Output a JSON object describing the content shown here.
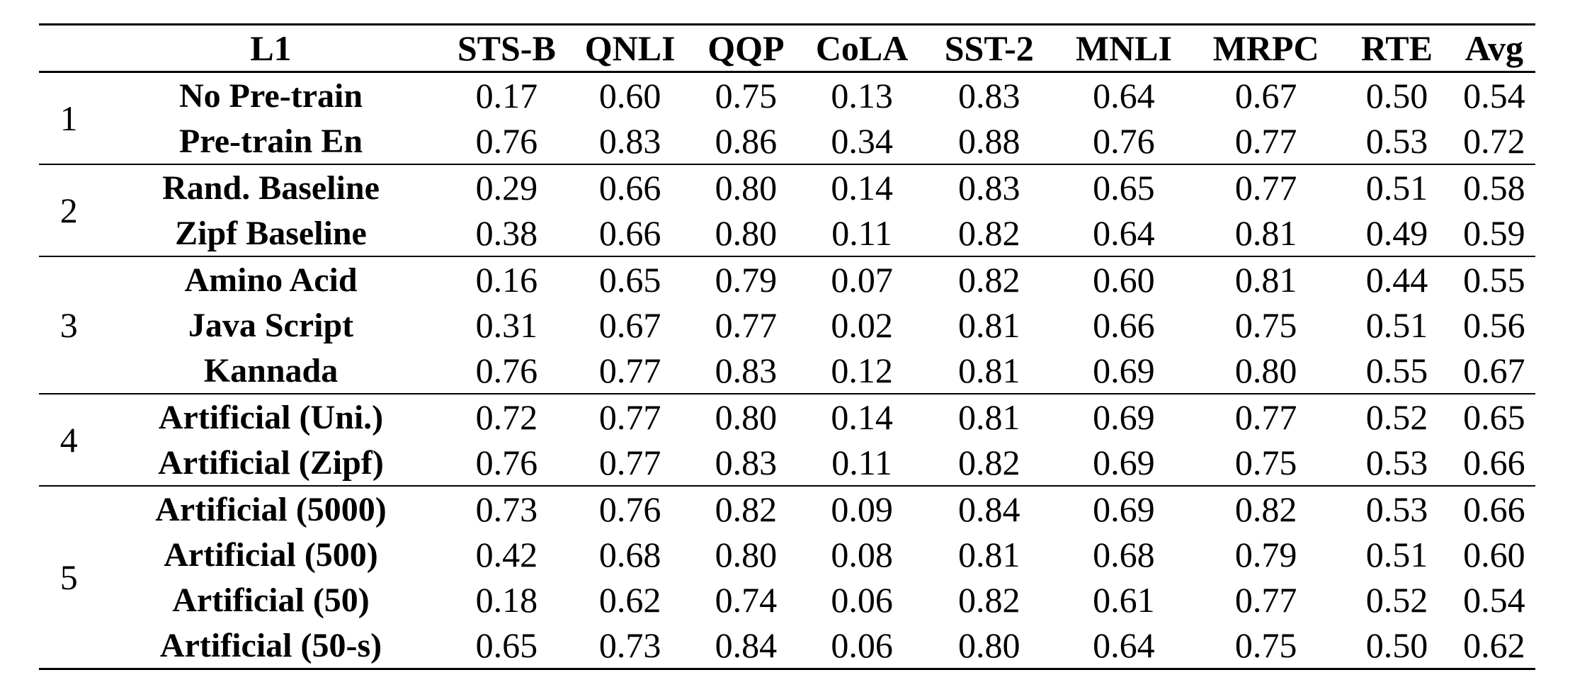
{
  "table": {
    "header": {
      "group_col": "",
      "columns": [
        "L1",
        "STS-B",
        "QNLI",
        "QQP",
        "CoLA",
        "SST-2",
        "MNLI",
        "MRPC",
        "RTE",
        "Avg"
      ]
    },
    "groups": [
      {
        "number": "1",
        "rows": [
          {
            "label": "No Pre-train",
            "values": [
              "0.17",
              "0.60",
              "0.75",
              "0.13",
              "0.83",
              "0.64",
              "0.67",
              "0.50",
              "0.54"
            ]
          },
          {
            "label": "Pre-train En",
            "values": [
              "0.76",
              "0.83",
              "0.86",
              "0.34",
              "0.88",
              "0.76",
              "0.77",
              "0.53",
              "0.72"
            ]
          }
        ]
      },
      {
        "number": "2",
        "rows": [
          {
            "label": "Rand. Baseline",
            "values": [
              "0.29",
              "0.66",
              "0.80",
              "0.14",
              "0.83",
              "0.65",
              "0.77",
              "0.51",
              "0.58"
            ]
          },
          {
            "label": "Zipf Baseline",
            "values": [
              "0.38",
              "0.66",
              "0.80",
              "0.11",
              "0.82",
              "0.64",
              "0.81",
              "0.49",
              "0.59"
            ]
          }
        ]
      },
      {
        "number": "3",
        "rows": [
          {
            "label": "Amino Acid",
            "values": [
              "0.16",
              "0.65",
              "0.79",
              "0.07",
              "0.82",
              "0.60",
              "0.81",
              "0.44",
              "0.55"
            ]
          },
          {
            "label": "Java Script",
            "values": [
              "0.31",
              "0.67",
              "0.77",
              "0.02",
              "0.81",
              "0.66",
              "0.75",
              "0.51",
              "0.56"
            ]
          },
          {
            "label": "Kannada",
            "values": [
              "0.76",
              "0.77",
              "0.83",
              "0.12",
              "0.81",
              "0.69",
              "0.80",
              "0.55",
              "0.67"
            ]
          }
        ]
      },
      {
        "number": "4",
        "rows": [
          {
            "label": "Artificial (Uni.)",
            "values": [
              "0.72",
              "0.77",
              "0.80",
              "0.14",
              "0.81",
              "0.69",
              "0.77",
              "0.52",
              "0.65"
            ]
          },
          {
            "label": "Artificial (Zipf)",
            "values": [
              "0.76",
              "0.77",
              "0.83",
              "0.11",
              "0.82",
              "0.69",
              "0.75",
              "0.53",
              "0.66"
            ]
          }
        ]
      },
      {
        "number": "5",
        "rows": [
          {
            "label": "Artificial (5000)",
            "values": [
              "0.73",
              "0.76",
              "0.82",
              "0.09",
              "0.84",
              "0.69",
              "0.82",
              "0.53",
              "0.66"
            ]
          },
          {
            "label": "Artificial (500)",
            "values": [
              "0.42",
              "0.68",
              "0.80",
              "0.08",
              "0.81",
              "0.68",
              "0.79",
              "0.51",
              "0.60"
            ]
          },
          {
            "label": "Artificial (50)",
            "values": [
              "0.18",
              "0.62",
              "0.74",
              "0.06",
              "0.82",
              "0.61",
              "0.77",
              "0.52",
              "0.54"
            ]
          },
          {
            "label": "Artificial (50-s)",
            "values": [
              "0.65",
              "0.73",
              "0.84",
              "0.06",
              "0.80",
              "0.64",
              "0.75",
              "0.50",
              "0.62"
            ]
          }
        ]
      }
    ],
    "colors": {
      "text": "#000000",
      "background": "#ffffff",
      "rule": "#000000"
    }
  }
}
